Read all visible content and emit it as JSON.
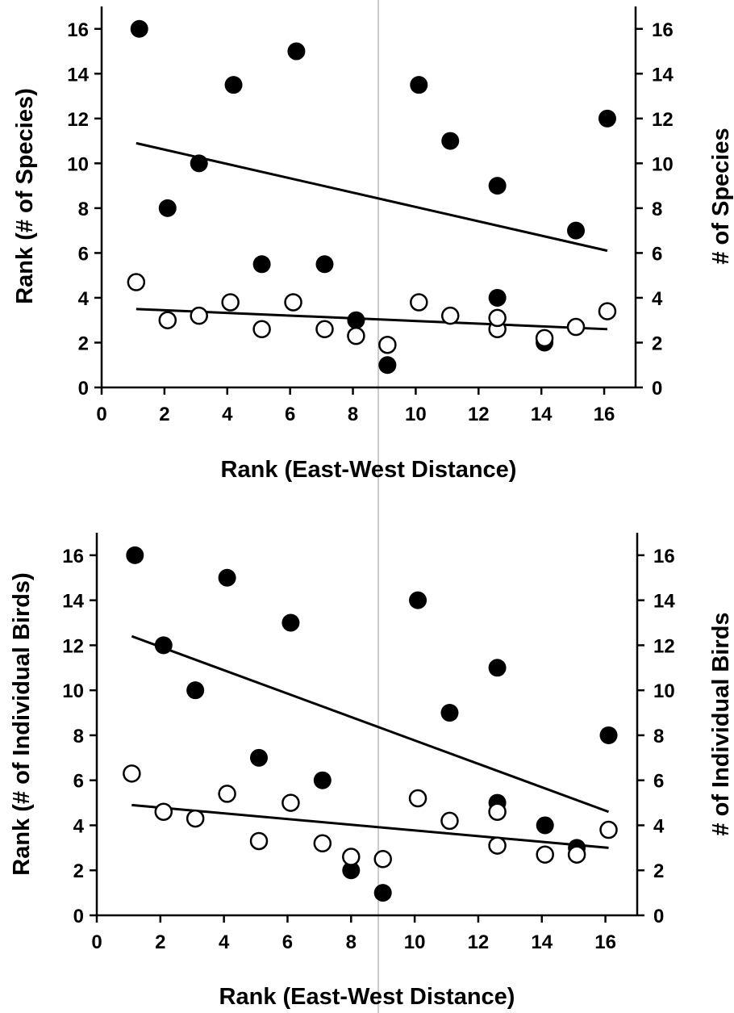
{
  "chart_data": [
    {
      "type": "scatter",
      "xlabel": "Rank (East-West Distance)",
      "ylabel": "Rank (# of Species)",
      "ylabel_right": "# of Species",
      "xlim": [
        0,
        17
      ],
      "ylim": [
        0,
        17
      ],
      "xticks": [
        0,
        2,
        4,
        6,
        8,
        10,
        12,
        14,
        16
      ],
      "yticks": [
        0,
        2,
        4,
        6,
        8,
        10,
        12,
        14,
        16
      ],
      "yticks_right": [
        0,
        2,
        4,
        6,
        8,
        10,
        12,
        14,
        16
      ],
      "grid": false,
      "series": [
        {
          "marker": "filled",
          "x": [
            1.2,
            2.1,
            3.1,
            4.2,
            5.1,
            6.2,
            7.1,
            8.1,
            9.1,
            10.1,
            11.1,
            12.6,
            12.6,
            14.1,
            15.1,
            16.1
          ],
          "y": [
            16,
            8,
            10,
            13.5,
            5.5,
            15,
            5.5,
            3,
            1,
            13.5,
            11,
            9,
            4,
            2,
            7,
            12
          ],
          "trend": {
            "x": [
              1.1,
              16.1
            ],
            "y": [
              10.9,
              6.1
            ]
          }
        },
        {
          "marker": "open",
          "x": [
            1.1,
            2.1,
            3.1,
            4.1,
            5.1,
            6.1,
            7.1,
            8.1,
            9.1,
            10.1,
            11.1,
            12.6,
            12.6,
            14.1,
            15.1,
            16.1
          ],
          "y": [
            4.7,
            3.0,
            3.2,
            3.8,
            2.6,
            3.8,
            2.6,
            2.3,
            1.9,
            3.8,
            3.2,
            2.6,
            3.1,
            2.2,
            2.7,
            3.4
          ],
          "trend": {
            "x": [
              1.1,
              16.1
            ],
            "y": [
              3.5,
              2.6
            ]
          }
        }
      ]
    },
    {
      "type": "scatter",
      "xlabel": "Rank (East-West Distance)",
      "ylabel": "Rank (# of Individual Birds)",
      "ylabel_right": "# of Individual Birds",
      "xlim": [
        0,
        17
      ],
      "ylim": [
        0,
        17
      ],
      "xticks": [
        0,
        2,
        4,
        6,
        8,
        10,
        12,
        14,
        16
      ],
      "yticks": [
        0,
        2,
        4,
        6,
        8,
        10,
        12,
        14,
        16
      ],
      "yticks_right": [
        0,
        2,
        4,
        6,
        8,
        10,
        12,
        14,
        16
      ],
      "grid": false,
      "series": [
        {
          "marker": "filled",
          "x": [
            1.2,
            2.1,
            3.1,
            4.1,
            5.1,
            6.1,
            7.1,
            8.0,
            9.0,
            10.1,
            11.1,
            12.6,
            12.6,
            14.1,
            15.1,
            16.1
          ],
          "y": [
            16,
            12,
            10,
            15,
            7,
            13,
            6,
            2,
            1,
            14,
            9,
            11,
            5,
            4,
            3,
            8
          ],
          "trend": {
            "x": [
              1.1,
              16.1
            ],
            "y": [
              12.4,
              4.6
            ]
          }
        },
        {
          "marker": "open",
          "x": [
            1.1,
            2.1,
            3.1,
            4.1,
            5.1,
            6.1,
            7.1,
            8.0,
            9.0,
            10.1,
            11.1,
            12.6,
            12.6,
            14.1,
            15.1,
            16.1
          ],
          "y": [
            6.3,
            4.6,
            4.3,
            5.4,
            3.3,
            5.0,
            3.2,
            2.6,
            2.5,
            5.2,
            4.2,
            4.6,
            3.1,
            2.7,
            2.7,
            3.8
          ],
          "trend": {
            "x": [
              1.1,
              16.1
            ],
            "y": [
              4.9,
              3.0
            ]
          }
        }
      ]
    }
  ]
}
